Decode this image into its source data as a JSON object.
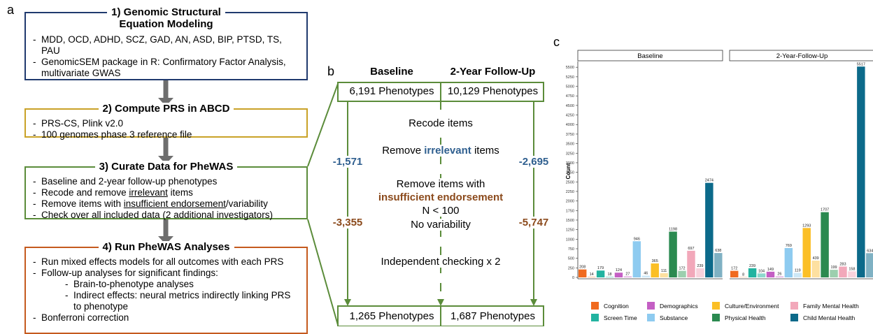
{
  "panel_a": {
    "label": "a",
    "boxes": [
      {
        "title": [
          "1) Genomic Structural",
          "Equation Modeling"
        ],
        "color": "#203a6e",
        "items": [
          {
            "level": 1,
            "segments": [
              {
                "text": "MDD, OCD, ADHD, SCZ, GAD, AN, ASD, BIP, PTSD, TS, PAU"
              }
            ]
          },
          {
            "level": 1,
            "segments": [
              {
                "text": "GenomicSEM package in R: Confirmatory Factor Analysis, multivariate GWAS"
              }
            ]
          }
        ]
      },
      {
        "title": [
          "2) Compute PRS in ABCD"
        ],
        "color": "#c9a227",
        "items": [
          {
            "level": 1,
            "segments": [
              {
                "text": "PRS-CS, Plink v2.0"
              }
            ]
          },
          {
            "level": 1,
            "segments": [
              {
                "text": "100 genomes phase 3 reference file"
              }
            ]
          }
        ]
      },
      {
        "title": [
          "3) Curate Data for PheWAS"
        ],
        "color": "#5b8c3a",
        "items": [
          {
            "level": 1,
            "segments": [
              {
                "text": "Baseline and 2-year follow-up phenotypes"
              }
            ]
          },
          {
            "level": 1,
            "segments": [
              {
                "text": "Recode and remove "
              },
              {
                "text": "irrelevant",
                "underline": true
              },
              {
                "text": " items"
              }
            ]
          },
          {
            "level": 1,
            "segments": [
              {
                "text": "Remove items with "
              },
              {
                "text": "insufficient endorsement",
                "underline": true
              },
              {
                "text": "/variability"
              }
            ]
          },
          {
            "level": 1,
            "segments": [
              {
                "text": "Check over all included data (2 additional investigators)"
              }
            ]
          }
        ]
      },
      {
        "title": [
          "4) Run PheWAS Analyses"
        ],
        "color": "#c55a1e",
        "items": [
          {
            "level": 1,
            "segments": [
              {
                "text": "Run mixed effects models for all outcomes with each PRS"
              }
            ]
          },
          {
            "level": 1,
            "segments": [
              {
                "text": "Follow-up analyses for significant findings:"
              }
            ]
          },
          {
            "level": 2,
            "segments": [
              {
                "text": "Brain-to-phenotype analyses"
              }
            ]
          },
          {
            "level": 2,
            "segments": [
              {
                "text": "Indirect effects: neural metrics indirectly linking PRS to phenotype"
              }
            ]
          },
          {
            "level": 1,
            "segments": [
              {
                "text": "Bonferroni correction"
              }
            ]
          }
        ]
      }
    ]
  },
  "panel_b": {
    "label": "b",
    "headers": [
      "Baseline",
      "2-Year Follow-Up"
    ],
    "start": [
      "6,191 Phenotypes",
      "10,129 Phenotypes"
    ],
    "end": [
      "1,265 Phenotypes",
      "1,687 Phenotypes"
    ],
    "steps": [
      [
        {
          "text": "Recode items"
        }
      ],
      [
        {
          "text": "Remove "
        },
        {
          "text": "irrelevant",
          "color": "#2f5f8f",
          "bold": true
        },
        {
          "text": " items"
        }
      ],
      [
        {
          "text": "Remove items with"
        }
      ],
      [
        {
          "text": "insufficient endorsement",
          "color": "#8b4a1c",
          "bold": true
        }
      ],
      [
        {
          "text": "N < 100"
        }
      ],
      [
        {
          "text": "No variability"
        }
      ],
      [
        {
          "text": "Independent checking x 2"
        }
      ]
    ],
    "removed_baseline": [
      "-1,571",
      "-3,355"
    ],
    "removed_follow_up": [
      "-2,695",
      "-5,747"
    ],
    "removed_colors": [
      "#2f5f8f",
      "#8b4a1c"
    ],
    "line_color": "#5b8c3a"
  },
  "chart_data": {
    "type": "bar",
    "label": "c",
    "ylabel": "Count",
    "categories": [
      "Cognition",
      "Screen Time",
      "Demographics",
      "Substance",
      "Culture/Environment",
      "Physical Health",
      "Family Mental Health",
      "Child Mental Health"
    ],
    "colors": [
      "#f06a1f",
      "#22b3a0",
      "#c45fc4",
      "#8ecbf0",
      "#fbbf26",
      "#2b8a50",
      "#f2a8ba",
      "#0c6a8a"
    ],
    "light_colors": [
      "#f7b07c",
      "#8ed8cd",
      "#e0a8e0",
      "#cde8f7",
      "#fde0a0",
      "#9ccfae",
      "#f8d2dc",
      "#7fb1c3"
    ],
    "facets": [
      {
        "title": "Baseline",
        "values": [
          208,
          179,
          124,
          946,
          365,
          1198,
          697,
          2474
        ],
        "values_light": [
          14,
          18,
          27,
          46,
          111,
          172,
          239,
          638
        ]
      },
      {
        "title": "2-Year-Follow-Up",
        "values": [
          172,
          239,
          149,
          769,
          1293,
          1707,
          283,
          5517
        ],
        "values_light": [
          8,
          104,
          26,
          119,
          439,
          199,
          158,
          634
        ]
      }
    ],
    "ylim": [
      0,
      5650
    ],
    "yticks": [
      0,
      250,
      500,
      750,
      1000,
      1250,
      1500,
      1750,
      2000,
      2250,
      2500,
      2750,
      3000,
      3250,
      3500,
      3750,
      4000,
      4250,
      4500,
      4750,
      5000,
      5250,
      5500
    ]
  }
}
